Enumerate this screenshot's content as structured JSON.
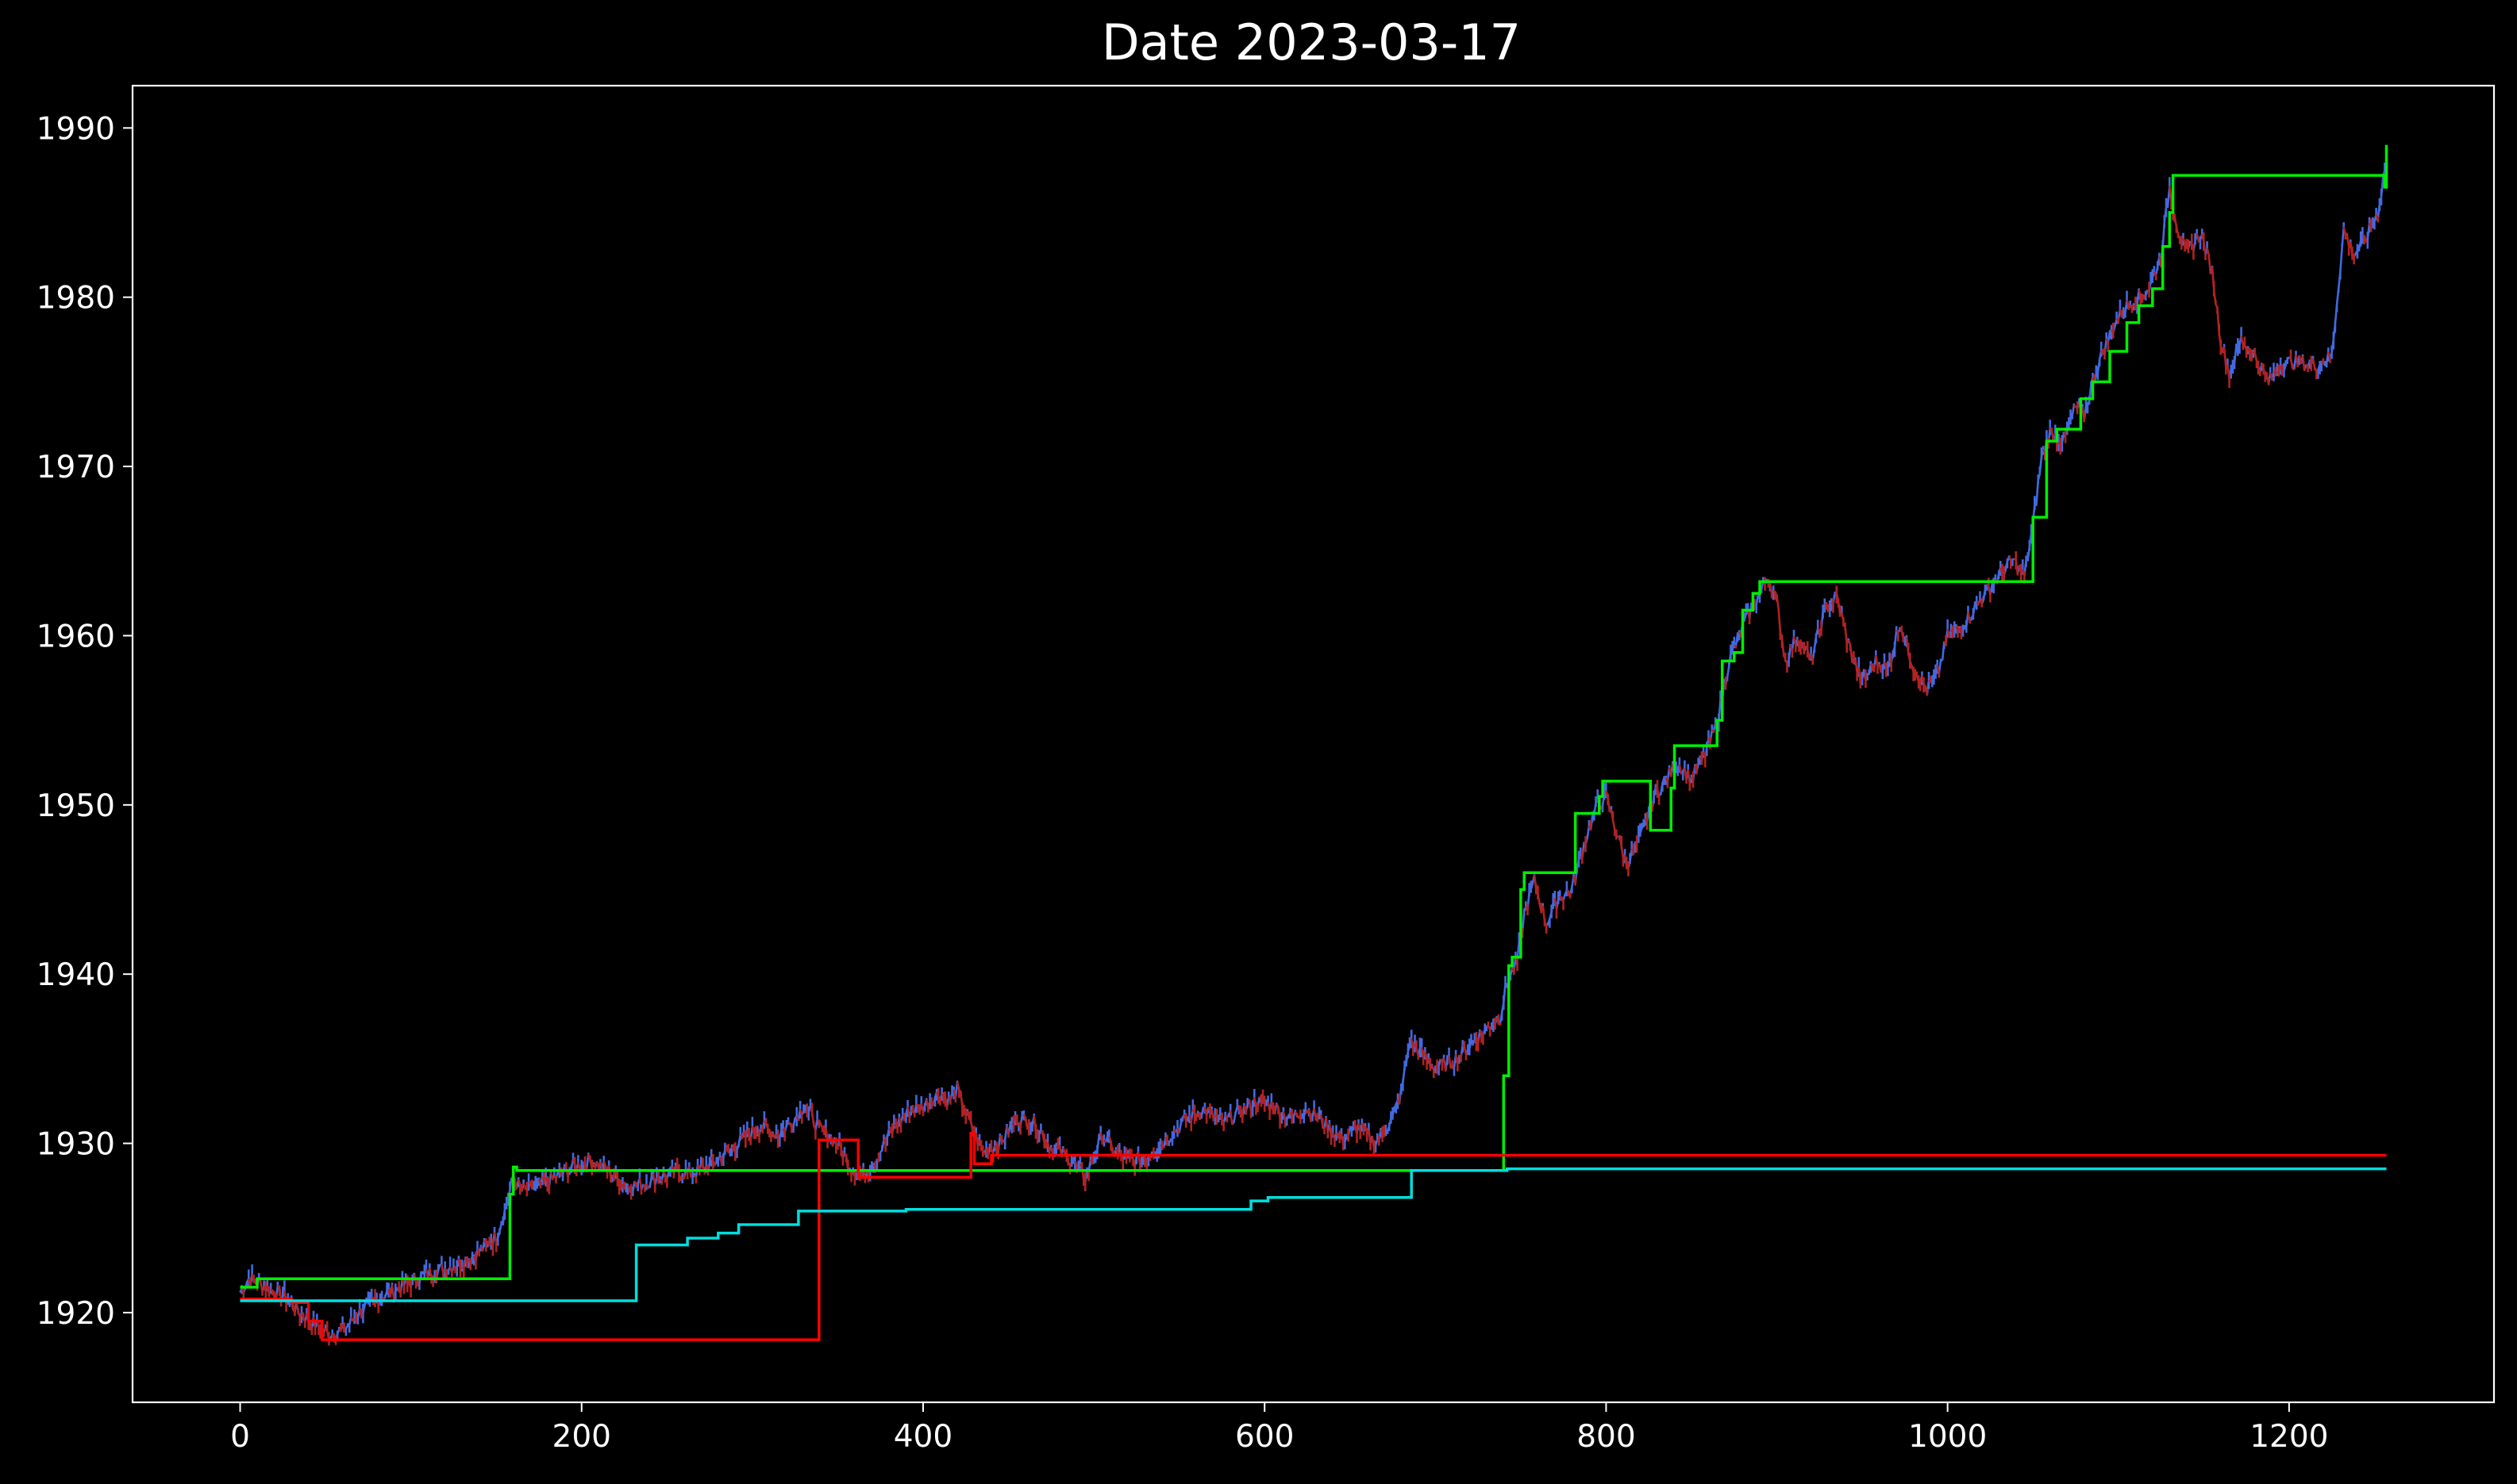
{
  "chart_data": {
    "type": "line",
    "title": "Date 2023-03-17",
    "xlabel": "",
    "ylabel": "",
    "xlim": [
      -63,
      1320
    ],
    "ylim": [
      1914.7,
      1992.5
    ],
    "grid": false,
    "legend": "none",
    "background": "#000000",
    "axis_color": "#ffffff",
    "x_ticks": [
      0,
      200,
      400,
      600,
      800,
      1000,
      1200
    ],
    "x_tick_labels": [
      "0",
      "200",
      "400",
      "600",
      "800",
      "1000",
      "1200"
    ],
    "y_ticks": [
      1920,
      1930,
      1940,
      1950,
      1960,
      1970,
      1980,
      1990
    ],
    "y_tick_labels": [
      "1920",
      "1930",
      "1940",
      "1950",
      "1960",
      "1970",
      "1980",
      "1990"
    ],
    "series": [
      {
        "color": "#4169e1",
        "down_color": "#b22222",
        "style": "price",
        "x": [
          0,
          5,
          10,
          15,
          25,
          35,
          45,
          52,
          60,
          70,
          80,
          90,
          100,
          110,
          120,
          130,
          140,
          150,
          155,
          160,
          165,
          175,
          185,
          195,
          205,
          215,
          225,
          235,
          245,
          255,
          265,
          275,
          285,
          295,
          305,
          315,
          325,
          330,
          340,
          350,
          358,
          365,
          372,
          380,
          390,
          400,
          410,
          415,
          420,
          428,
          435,
          445,
          455,
          465,
          475,
          485,
          495,
          505,
          515,
          525,
          535,
          545,
          555,
          565,
          575,
          585,
          595,
          605,
          615,
          625,
          635,
          645,
          655,
          665,
          675,
          680,
          685,
          690,
          700,
          710,
          720,
          730,
          738,
          742,
          748,
          752,
          758,
          765,
          772,
          780,
          788,
          795,
          800,
          805,
          812,
          820,
          828,
          835,
          842,
          850,
          858,
          865,
          872,
          880,
          886,
          890,
          895,
          900,
          905,
          912,
          920,
          928,
          935,
          942,
          950,
          958,
          965,
          972,
          980,
          988,
          995,
          1000,
          1008,
          1015,
          1022,
          1030,
          1038,
          1045,
          1050,
          1055,
          1060,
          1068,
          1075,
          1080,
          1085,
          1090,
          1098,
          1105,
          1112,
          1118,
          1125,
          1130,
          1135,
          1140,
          1148,
          1155,
          1160,
          1165,
          1172,
          1180,
          1188,
          1195,
          1205,
          1215,
          1225,
          1232,
          1238,
          1245,
          1252,
          1256
        ],
        "values": [
          1921.2,
          1922.0,
          1921.8,
          1921.5,
          1921.0,
          1920.0,
          1919.2,
          1918.7,
          1918.9,
          1920.0,
          1920.8,
          1921.3,
          1921.8,
          1922.3,
          1922.6,
          1923.0,
          1923.6,
          1924.5,
          1926.0,
          1928.0,
          1927.2,
          1927.5,
          1928.0,
          1928.6,
          1929.0,
          1928.5,
          1927.5,
          1927.6,
          1928.0,
          1928.3,
          1928.2,
          1928.7,
          1929.4,
          1930.3,
          1931.0,
          1930.5,
          1931.5,
          1932.2,
          1930.8,
          1930.0,
          1928.5,
          1928.2,
          1929.0,
          1930.5,
          1931.8,
          1932.2,
          1933.0,
          1932.5,
          1933.2,
          1931.0,
          1929.5,
          1930.0,
          1931.5,
          1931.2,
          1929.8,
          1929.2,
          1928.0,
          1930.5,
          1929.2,
          1929.0,
          1929.5,
          1930.5,
          1931.5,
          1932.0,
          1931.2,
          1931.8,
          1932.5,
          1932.2,
          1931.5,
          1932.0,
          1931.2,
          1930.2,
          1931.0,
          1930.0,
          1931.5,
          1933.0,
          1936.0,
          1935.5,
          1934.5,
          1934.8,
          1935.8,
          1936.8,
          1937.5,
          1939.5,
          1940.8,
          1943.5,
          1945.5,
          1943.0,
          1944.5,
          1945.0,
          1948.0,
          1950.0,
          1950.5,
          1948.8,
          1946.5,
          1948.0,
          1950.5,
          1951.5,
          1952.5,
          1951.5,
          1953.0,
          1954.8,
          1958.5,
          1960.5,
          1961.8,
          1962.5,
          1963.5,
          1962.0,
          1958.5,
          1960.0,
          1958.5,
          1961.5,
          1962.3,
          1959.5,
          1957.2,
          1958.5,
          1958.0,
          1960.8,
          1958.2,
          1956.8,
          1958.0,
          1960.0,
          1960.5,
          1961.5,
          1962.5,
          1963.5,
          1964.5,
          1963.5,
          1966.5,
          1970.5,
          1972.0,
          1971.5,
          1973.5,
          1973.0,
          1975.0,
          1976.5,
          1978.5,
          1979.5,
          1980.0,
          1980.5,
          1982.5,
          1986.5,
          1984.0,
          1982.5,
          1983.8,
          1981.5,
          1977.5,
          1975.5,
          1977.5,
          1976.5,
          1975.0,
          1976.0,
          1976.2,
          1976.0,
          1976.5,
          1984.0,
          1982.5,
          1983.5,
          1985.0,
          1987.5
        ]
      },
      {
        "color": "#00ee00",
        "style": "step",
        "x": [
          0,
          10,
          155,
          158,
          160,
          162,
          300,
          400,
          500,
          600,
          700,
          738,
          740,
          743,
          745,
          750,
          752,
          780,
          782,
          796,
          798,
          822,
          826,
          838,
          840,
          858,
          865,
          868,
          875,
          880,
          886,
          890,
          1048,
          1050,
          1058,
          1064,
          1070,
          1078,
          1085,
          1095,
          1105,
          1112,
          1120,
          1126,
          1130,
          1132,
          1240,
          1255,
          1256,
          1257
        ],
        "values": [
          1921.5,
          1922.0,
          1922.0,
          1927.0,
          1928.6,
          1928.4,
          1928.4,
          1928.4,
          1928.4,
          1928.4,
          1928.4,
          1928.4,
          1934.0,
          1940.5,
          1941.0,
          1945.0,
          1946.0,
          1946.0,
          1949.5,
          1950.5,
          1951.4,
          1951.4,
          1948.5,
          1951.0,
          1953.5,
          1953.5,
          1955.0,
          1958.5,
          1959.0,
          1961.5,
          1962.5,
          1963.2,
          1963.2,
          1967.0,
          1971.5,
          1972.2,
          1972.2,
          1974.0,
          1975.0,
          1976.8,
          1978.5,
          1979.5,
          1980.5,
          1983.0,
          1985.0,
          1987.2,
          1987.2,
          1987.2,
          1986.5,
          1989.0
        ]
      },
      {
        "color": "#ff0000",
        "style": "step",
        "x": [
          0,
          20,
          30,
          40,
          48,
          50,
          150,
          250,
          337,
          339,
          345,
          360,
          362,
          365,
          400,
          426,
          428,
          430,
          440,
          500,
          600,
          800,
          1000,
          1200,
          1257
        ],
        "values": [
          1920.8,
          1920.8,
          1920.6,
          1919.5,
          1918.4,
          1918.4,
          1918.4,
          1918.4,
          1918.4,
          1930.2,
          1930.2,
          1930.2,
          1928.0,
          1928.0,
          1928.0,
          1928.0,
          1930.6,
          1928.8,
          1929.3,
          1929.3,
          1929.3,
          1929.3,
          1929.3,
          1929.3,
          1929.3
        ]
      },
      {
        "color": "#00dede",
        "style": "step",
        "x": [
          0,
          100,
          200,
          230,
          232,
          260,
          262,
          278,
          280,
          290,
          292,
          325,
          327,
          380,
          390,
          500,
          590,
          592,
          600,
          602,
          640,
          684,
          686,
          740,
          742,
          800,
          1000,
          1200,
          1257
        ],
        "values": [
          1920.7,
          1920.7,
          1920.7,
          1920.7,
          1924.0,
          1924.0,
          1924.4,
          1924.4,
          1924.7,
          1924.7,
          1925.2,
          1925.2,
          1926.0,
          1926.0,
          1926.1,
          1926.1,
          1926.1,
          1926.6,
          1926.6,
          1926.8,
          1926.8,
          1926.8,
          1928.4,
          1928.4,
          1928.5,
          1928.5,
          1928.5,
          1928.5,
          1928.5
        ]
      }
    ]
  }
}
